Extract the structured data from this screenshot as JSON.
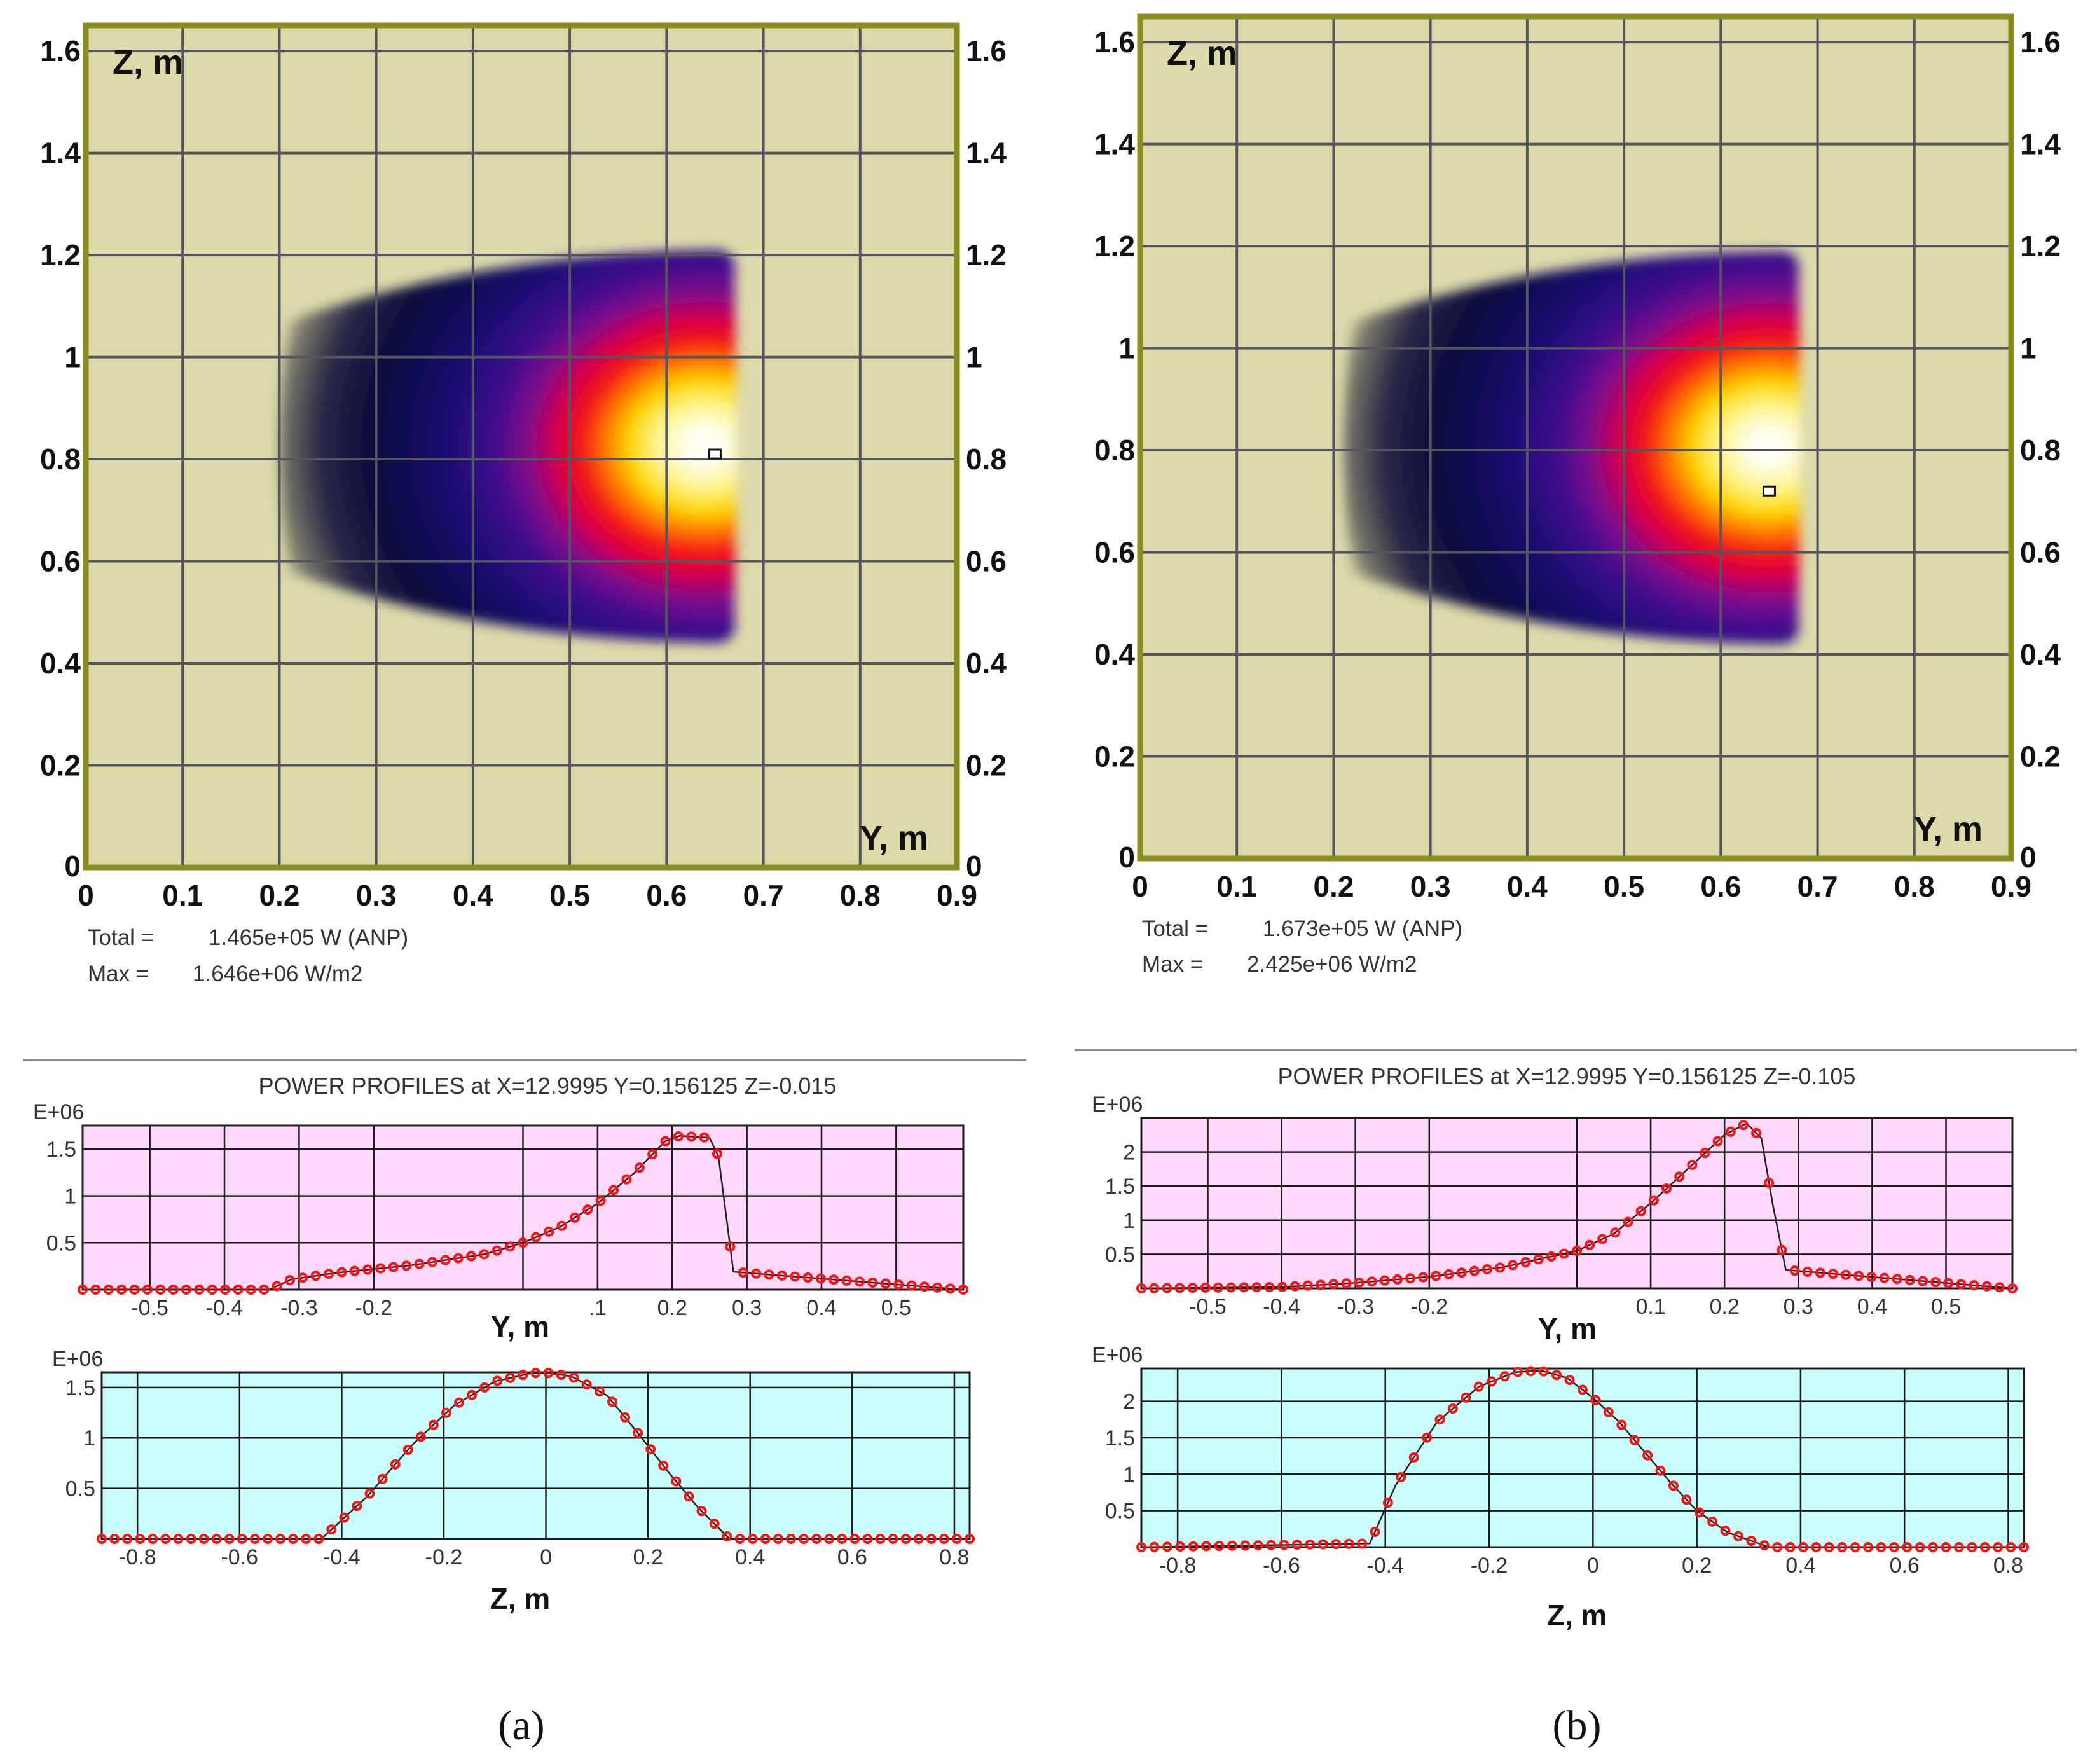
{
  "colors": {
    "map_background": "#ddd9ab",
    "map_border": "#8c8c1f",
    "grid": "#55555f",
    "profile_y_bg": "#ffd9fb",
    "profile_z_bg": "#c9ffff",
    "curve": "#ff1010",
    "line": "#222222",
    "separator": "#8f8f8f"
  },
  "panels": [
    {
      "caption": "(a)",
      "heatmap": {
        "type": "heatmap",
        "xlabel": "Y, m",
        "ylabel": "Z, m",
        "xlim": [
          0,
          0.9
        ],
        "ylim": [
          0,
          1.65
        ],
        "x_ticks": [
          "0",
          "0.1",
          "0.2",
          "0.3",
          "0.4",
          "0.5",
          "0.6",
          "0.7",
          "0.8",
          "0.9"
        ],
        "y_ticks": [
          "0",
          "0.2",
          "0.4",
          "0.6",
          "0.8",
          "1",
          "1.2",
          "1.4",
          "1.6"
        ],
        "y_tick_values": [
          0,
          0.2,
          0.4,
          0.6,
          0.8,
          1.0,
          1.2,
          1.4,
          1.6
        ],
        "spot": {
          "y_min": 0.21,
          "y_max": 0.67,
          "z_min": 0.44,
          "z_max": 1.21,
          "peak_y": 0.645,
          "peak_z": 0.81
        },
        "marker": {
          "y": 0.65,
          "z": 0.81
        },
        "total_label": "Total =",
        "total_value": "1.465e+05 W (ANP)",
        "max_label": "Max =",
        "max_value": "1.646e+06 W/m2"
      },
      "profiles_title": "POWER PROFILES  at  X=12.9995 Y=0.156125 Z=-0.015",
      "profile_y": {
        "type": "line",
        "scale_label": "E+06",
        "xlabel": "Y, m",
        "xlim": [
          -0.59,
          0.59
        ],
        "ylim": [
          0,
          1.75
        ],
        "x_ticks": [
          "-0.5",
          "-0.4",
          "-0.3",
          "-0.2",
          ".1",
          "0.2",
          "0.3",
          "0.4",
          "0.5"
        ],
        "x_tick_values": [
          -0.5,
          -0.4,
          -0.3,
          -0.2,
          0.1,
          0.2,
          0.3,
          0.4,
          0.5
        ],
        "y_ticks": [
          "0.5",
          "1",
          "1.5"
        ],
        "y_tick_values": [
          0.5,
          1.0,
          1.5
        ],
        "x": [
          -0.59,
          -0.34,
          -0.31,
          -0.25,
          -0.15,
          -0.05,
          0.0,
          0.05,
          0.1,
          0.15,
          0.19,
          0.21,
          0.25,
          0.262,
          0.282,
          0.59
        ],
        "y": [
          0.0,
          0.0,
          0.11,
          0.18,
          0.26,
          0.38,
          0.5,
          0.67,
          0.92,
          1.25,
          1.58,
          1.64,
          1.62,
          1.42,
          0.19,
          0.0
        ]
      },
      "profile_z": {
        "type": "line",
        "scale_label": "E+06",
        "xlabel": "Z, m",
        "xlim": [
          -0.87,
          0.83
        ],
        "ylim": [
          0,
          1.65
        ],
        "x_ticks": [
          "-0.8",
          "-0.6",
          "-0.4",
          "-0.2",
          "0",
          "0.2",
          "0.4",
          "0.6",
          "0.8"
        ],
        "x_tick_values": [
          -0.8,
          -0.6,
          -0.4,
          -0.2,
          0,
          0.2,
          0.4,
          0.6,
          0.8
        ],
        "y_ticks": [
          "0.5",
          "1",
          "1.5"
        ],
        "y_tick_values": [
          0.5,
          1.0,
          1.5
        ],
        "x": [
          -0.87,
          -0.44,
          -0.35,
          -0.26,
          -0.18,
          -0.1,
          -0.03,
          0.0,
          0.05,
          0.12,
          0.18,
          0.24,
          0.3,
          0.36,
          0.83
        ],
        "y": [
          0.0,
          0.0,
          0.42,
          0.94,
          1.32,
          1.56,
          1.64,
          1.646,
          1.61,
          1.42,
          1.05,
          0.66,
          0.3,
          0.0,
          0.0
        ]
      }
    },
    {
      "caption": "(b)",
      "heatmap": {
        "type": "heatmap",
        "xlabel": "Y, m",
        "ylabel": "Z, m",
        "xlim": [
          0,
          0.9
        ],
        "ylim": [
          0,
          1.65
        ],
        "x_ticks": [
          "0",
          "0.1",
          "0.2",
          "0.3",
          "0.4",
          "0.5",
          "0.6",
          "0.7",
          "0.8",
          "0.9"
        ],
        "y_ticks": [
          "0",
          "0.2",
          "0.4",
          "0.6",
          "0.8",
          "1",
          "1.2",
          "1.4",
          "1.6"
        ],
        "y_tick_values": [
          0,
          0.2,
          0.4,
          0.6,
          0.8,
          1.0,
          1.2,
          1.4,
          1.6
        ],
        "spot": {
          "y_min": 0.22,
          "y_max": 0.68,
          "z_min": 0.42,
          "z_max": 1.19,
          "peak_y": 0.645,
          "peak_z": 0.72
        },
        "marker": {
          "y": 0.65,
          "z": 0.72
        },
        "total_label": "Total =",
        "total_value": "1.673e+05 W (ANP)",
        "max_label": "Max =",
        "max_value": "2.425e+06 W/m2"
      },
      "profiles_title": "POWER PROFILES  at  X=12.9995 Y=0.156125 Z=-0.105",
      "profile_y": {
        "type": "line",
        "scale_label": "E+06",
        "xlabel": "Y, m",
        "xlim": [
          -0.59,
          0.59
        ],
        "ylim": [
          0,
          2.5
        ],
        "x_ticks": [
          "-0.5",
          "-0.4",
          "-0.3",
          "-0.2",
          "0.1",
          "0.2",
          "0.3",
          "0.4",
          "0.5"
        ],
        "x_tick_values": [
          -0.5,
          -0.4,
          -0.3,
          -0.2,
          0.1,
          0.2,
          0.3,
          0.4,
          0.5
        ],
        "y_ticks": [
          "0.5",
          "1",
          "1.5",
          "2"
        ],
        "y_tick_values": [
          0.5,
          1.0,
          1.5,
          2.0
        ],
        "x": [
          -0.59,
          -0.4,
          -0.3,
          -0.2,
          -0.1,
          0.0,
          0.05,
          0.1,
          0.15,
          0.2,
          0.23,
          0.25,
          0.265,
          0.283,
          0.59
        ],
        "y": [
          0.0,
          0.02,
          0.08,
          0.17,
          0.31,
          0.55,
          0.8,
          1.25,
          1.75,
          2.25,
          2.42,
          2.2,
          1.25,
          0.27,
          0.0
        ]
      },
      "profile_z": {
        "type": "line",
        "scale_label": "E+06",
        "xlabel": "Z, m",
        "xlim": [
          -0.87,
          0.83
        ],
        "ylim": [
          0,
          2.45
        ],
        "x_ticks": [
          "-0.8",
          "-0.6",
          "-0.4",
          "-0.2",
          "0",
          "0.2",
          "0.4",
          "0.6",
          "0.8"
        ],
        "x_tick_values": [
          -0.8,
          -0.6,
          -0.4,
          -0.2,
          0,
          0.2,
          0.4,
          0.6,
          0.8
        ],
        "y_ticks": [
          "0.5",
          "1",
          "1.5",
          "2"
        ],
        "y_tick_values": [
          0.5,
          1.0,
          1.5,
          2.0
        ],
        "x": [
          -0.87,
          -0.43,
          -0.38,
          -0.3,
          -0.22,
          -0.15,
          -0.1,
          -0.05,
          0.0,
          0.05,
          0.1,
          0.15,
          0.2,
          0.26,
          0.34,
          0.83
        ],
        "y": [
          0.0,
          0.05,
          0.85,
          1.72,
          2.2,
          2.4,
          2.42,
          2.32,
          2.05,
          1.72,
          1.3,
          0.88,
          0.5,
          0.2,
          0.0,
          0.0
        ]
      }
    }
  ]
}
